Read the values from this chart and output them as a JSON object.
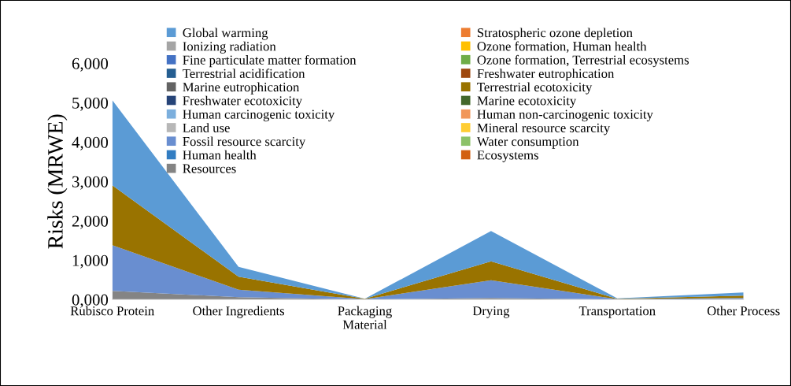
{
  "chart_data": {
    "type": "area",
    "stacked": true,
    "ylabel": "Risks (MRWE)",
    "categories": [
      "Rubisco Protein",
      "Other Ingredients",
      "Packaging\nMaterial",
      "Drying",
      "Transportation",
      "Other Process"
    ],
    "ylim": [
      0,
      6000
    ],
    "yticks": [
      {
        "value": 0,
        "label": "0,000"
      },
      {
        "value": 1000,
        "label": "1,000"
      },
      {
        "value": 2000,
        "label": "2,000"
      },
      {
        "value": 3000,
        "label": "3,000"
      },
      {
        "value": 4000,
        "label": "4,000"
      },
      {
        "value": 5000,
        "label": "5,000"
      },
      {
        "value": 6000,
        "label": "6,000"
      }
    ],
    "legend": "top",
    "grid": false,
    "series": [
      {
        "name": "Resources",
        "color": "#848484",
        "values": [
          220,
          60,
          0,
          40,
          0,
          10
        ]
      },
      {
        "name": "Ecosystems",
        "color": "#d26012",
        "values": [
          null,
          null,
          null,
          null,
          null,
          null
        ]
      },
      {
        "name": "Human health",
        "color": "#327dc2",
        "values": [
          null,
          null,
          null,
          null,
          null,
          null
        ]
      },
      {
        "name": "Water consumption",
        "color": "#8cc168",
        "values": [
          null,
          null,
          null,
          null,
          null,
          null
        ]
      },
      {
        "name": "Fossil resource scarcity",
        "color": "#698ed0",
        "values": [
          1160,
          190,
          10,
          450,
          10,
          30
        ]
      },
      {
        "name": "Mineral resource scarcity",
        "color": "#ffcd33",
        "values": [
          null,
          null,
          null,
          null,
          null,
          null
        ]
      },
      {
        "name": "Land use",
        "color": "#b7b7b7",
        "values": [
          null,
          null,
          null,
          null,
          null,
          null
        ]
      },
      {
        "name": "Human non-carcinogenic toxicity",
        "color": "#f1975a",
        "values": [
          null,
          null,
          null,
          null,
          null,
          null
        ]
      },
      {
        "name": "Human carcinogenic toxicity",
        "color": "#7cafdd",
        "values": [
          null,
          null,
          null,
          null,
          null,
          null
        ]
      },
      {
        "name": "Marine ecotoxicity",
        "color": "#43682b",
        "values": [
          null,
          null,
          null,
          null,
          null,
          null
        ]
      },
      {
        "name": "Freshwater ecotoxicity",
        "color": "#264478",
        "values": [
          null,
          null,
          null,
          null,
          null,
          null
        ]
      },
      {
        "name": "Terrestrial ecotoxicity",
        "color": "#997300",
        "values": [
          1520,
          330,
          10,
          480,
          10,
          60
        ]
      },
      {
        "name": "Marine eutrophication",
        "color": "#636363",
        "values": [
          null,
          null,
          null,
          null,
          null,
          null
        ]
      },
      {
        "name": "Freshwater eutrophication",
        "color": "#9e480e",
        "values": [
          null,
          null,
          null,
          null,
          null,
          null
        ]
      },
      {
        "name": "Terrestrial acidification",
        "color": "#255e91",
        "values": [
          null,
          null,
          null,
          null,
          null,
          null
        ]
      },
      {
        "name": "Ozone formation, Terrestrial ecosystems",
        "color": "#70ad47",
        "values": [
          null,
          null,
          null,
          null,
          null,
          null
        ]
      },
      {
        "name": "Fine particulate matter formation",
        "color": "#4472c4",
        "values": [
          null,
          null,
          null,
          null,
          null,
          null
        ]
      },
      {
        "name": "Ozone formation, Human health",
        "color": "#ffc000",
        "values": [
          null,
          null,
          null,
          null,
          null,
          null
        ]
      },
      {
        "name": "Ionizing radiation",
        "color": "#a5a5a5",
        "values": [
          null,
          null,
          null,
          null,
          null,
          null
        ]
      },
      {
        "name": "Stratospheric ozone depletion",
        "color": "#ed7d31",
        "values": [
          null,
          null,
          null,
          null,
          null,
          null
        ]
      },
      {
        "name": "Global warming",
        "color": "#5b9bd5",
        "values": [
          2160,
          250,
          0,
          770,
          10,
          80
        ]
      }
    ]
  }
}
